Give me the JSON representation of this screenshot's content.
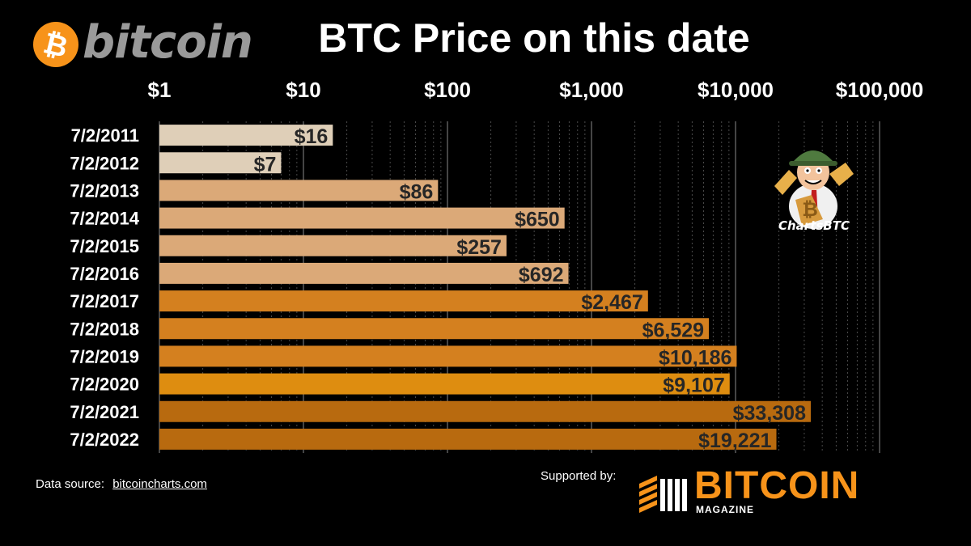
{
  "header": {
    "logo_symbol": "₿",
    "logo_text": "bitcoin",
    "title": "BTC Price on this date"
  },
  "chart_data": {
    "type": "bar",
    "orientation": "horizontal",
    "title": "BTC Price on this date",
    "xscale": "log",
    "xlim": [
      1,
      100000
    ],
    "x_tick_labels": [
      "$1",
      "$10",
      "$100",
      "$1,000",
      "$10,000",
      "$100,000"
    ],
    "x_tick_values": [
      1,
      10,
      100,
      1000,
      10000,
      100000
    ],
    "axis_position": "top",
    "grid": true,
    "categories": [
      "7/2/2011",
      "7/2/2012",
      "7/2/2013",
      "7/2/2014",
      "7/2/2015",
      "7/2/2016",
      "7/2/2017",
      "7/2/2018",
      "7/2/2019",
      "7/2/2020",
      "7/2/2021",
      "7/2/2022"
    ],
    "values": [
      16,
      7,
      86,
      650,
      257,
      692,
      2467,
      6529,
      10186,
      9107,
      33308,
      19221
    ],
    "value_labels": [
      "$16",
      "$7",
      "$86",
      "$650",
      "$257",
      "$692",
      "$2,467",
      "$6,529",
      "$10,186",
      "$9,107",
      "$33,308",
      "$19,221"
    ],
    "bar_colors": [
      "#dfcfb8",
      "#dfcfb8",
      "#dba978",
      "#dba978",
      "#dba978",
      "#dba978",
      "#d4801f",
      "#d4801f",
      "#d4801f",
      "#de8d10",
      "#b86a0f",
      "#b86a0f"
    ]
  },
  "mascot": {
    "label": "ChartsBTC"
  },
  "footer": {
    "source_prefix": "Data source:",
    "source_link": "bitcoincharts.com",
    "supported_by": "Supported by:",
    "brand_name": "BITCOIN",
    "brand_sub": "MAGAZINE"
  },
  "colors": {
    "background": "#000000",
    "bitcoin_orange": "#f7931a",
    "logo_gray": "#9a9a9a"
  }
}
